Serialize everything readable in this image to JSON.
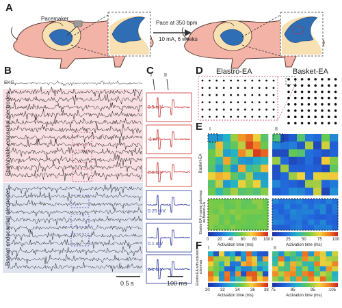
{
  "panels": {
    "a": "A",
    "b": "B",
    "c": "C",
    "d": "D",
    "e": "E",
    "f": "F"
  },
  "panel_a": {
    "pacemaker": "Pacemaker",
    "pace_line1": "Pace at 350 bpm",
    "pace_line2": "10 mA, 6 weeks"
  },
  "panel_b": {
    "ekg": "EKG",
    "group_epicardial": "Stretchable epicardial electrodes",
    "group_endocardial": "Basket endocardial electrodes",
    "scale": "0.5 s"
  },
  "panel_c": {
    "marker_1": "I",
    "marker_2": "II",
    "amps": [
      "0.5 mV",
      "1 mV",
      "0.5 mV",
      "0.25 mV",
      "0.1 mV",
      "0.1 mV"
    ],
    "scale": "100 ms"
  },
  "panel_d": {
    "elastro": "Elastro-EA",
    "basket": "Basket-EA"
  },
  "panel_e": {
    "marker_1": "I",
    "marker_2": "II",
    "row_basket": "Basket-EA",
    "row_elastro": "Elastro-EA in same colormap as Basket-EA",
    "ticks_1": [
      "0",
      "20",
      "40",
      "60",
      "80",
      "100"
    ],
    "ticks_2": [
      "0",
      "25",
      "50",
      "75",
      "100"
    ],
    "axis_label": "Activation time (ms)"
  },
  "panel_f": {
    "marker_1": "I",
    "marker_2": "II",
    "row_label": "Elastro-EA with adjusted colormap",
    "ticks_1": [
      "30",
      "32",
      "34",
      "36",
      "38"
    ],
    "ticks_2": [
      "75",
      "85",
      "95",
      "105"
    ],
    "axis_label": "Activation time (ms)"
  },
  "colors": {
    "pig": "#f3b3a7",
    "pig_outline": "#5a3a33",
    "heart": "#2f6eb5",
    "epicardial_bg": "#f8dfe4",
    "endocardial_bg": "#dfe3f0",
    "red_trace": "#d04545",
    "blue_trace": "#3a46a0"
  }
}
